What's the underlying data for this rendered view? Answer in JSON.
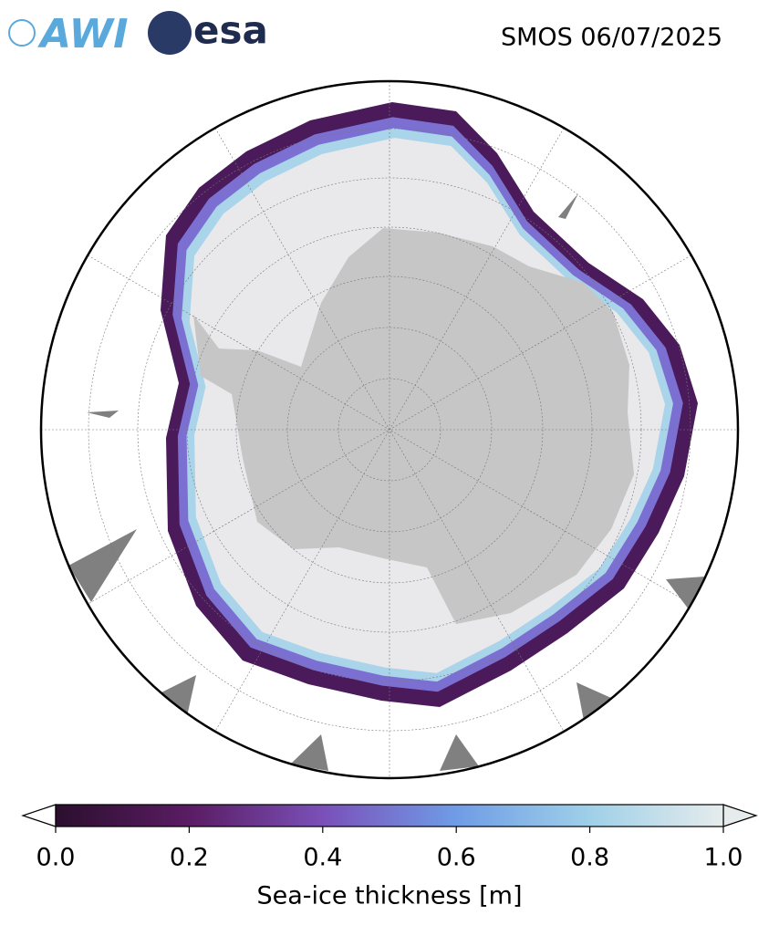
{
  "logos": {
    "awi": "AWI",
    "esa": "esa"
  },
  "title": "SMOS 06/07/2025",
  "colorbar": {
    "label": "Sea-ice thickness [m]",
    "lim": [
      0,
      1
    ],
    "ticks": [
      {
        "value": 0,
        "label": "0.0"
      },
      0.2,
      0.4,
      0.6,
      0.8,
      {
        "value": 1,
        "label": "1.0"
      }
    ],
    "colors": [
      "#2b0f2e",
      "#5a1c63",
      "#7a50b8",
      "#6f9ce6",
      "#9fd0e8",
      "#e6ecec"
    ]
  }
}
